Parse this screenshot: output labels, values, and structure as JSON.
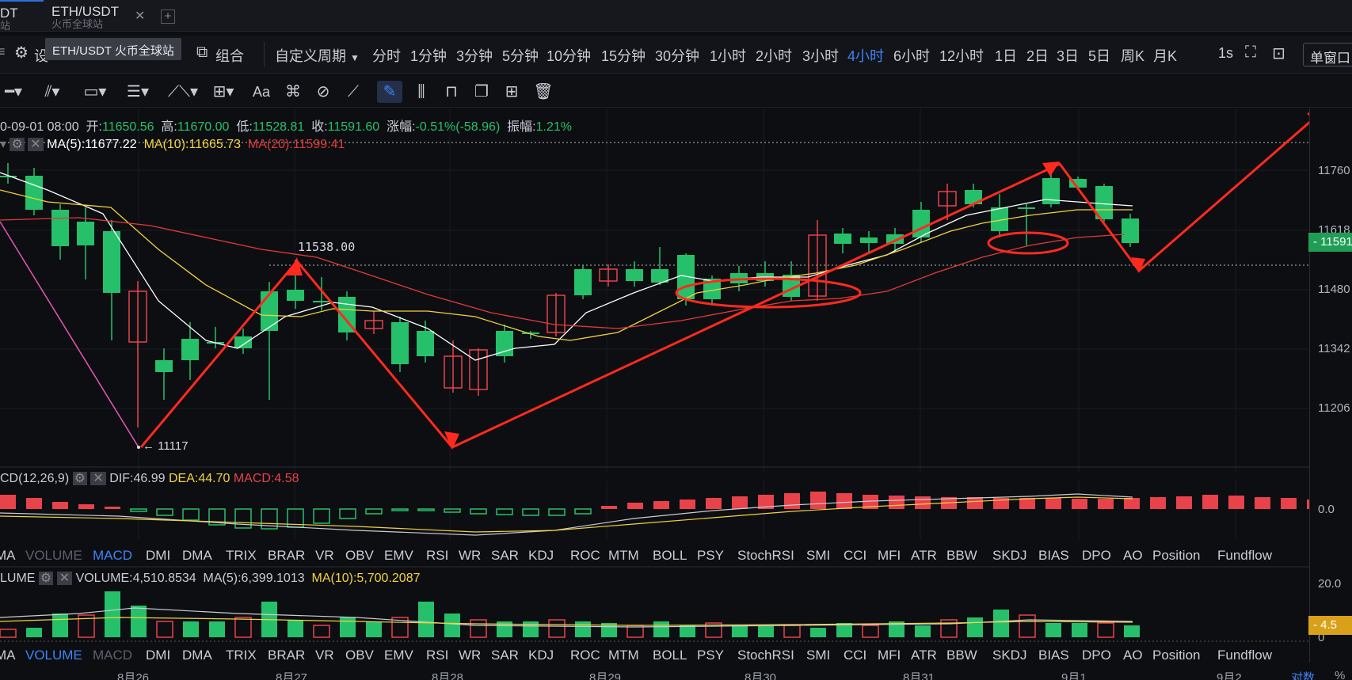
{
  "tabs": [
    {
      "title": "DT",
      "subtitle": "站"
    },
    {
      "title": "ETH/USDT",
      "subtitle": "火币全球站"
    }
  ],
  "tooltip": "ETH/USDT 火币全球站",
  "toolbar": {
    "settings_label": "设",
    "combine_label": "组合",
    "custom_period": "自定义周期",
    "periods": [
      "分时",
      "1分钟",
      "3分钟",
      "5分钟",
      "10分钟",
      "15分钟",
      "30分钟",
      "1小时",
      "2小时",
      "3小时",
      "4小时",
      "6小时",
      "12小时",
      "1日",
      "2日",
      "3日",
      "5日",
      "周K",
      "月K"
    ],
    "active_period": "4小时",
    "refresh": "1s",
    "single_window": "单窗口"
  },
  "ohlc": {
    "time": "0-09-01 08:00",
    "open_label": "开:",
    "open": "11650.56",
    "high_label": "高:",
    "high": "11670.00",
    "low_label": "低:",
    "low": "11528.81",
    "close_label": "收:",
    "close": "11591.60",
    "change_label": "涨幅:",
    "change": "-0.51%(-58.96)",
    "amp_label": "振幅:",
    "amp": "1.21%"
  },
  "ma": {
    "ma5": "MA(5):11677.22",
    "ma10": "MA(10):11665.73",
    "ma20": "MA(20):11599.41"
  },
  "annotations": {
    "peak": "11538.00",
    "low": "← 11117"
  },
  "price_axis": [
    "11760",
    "11618",
    "11480",
    "11342",
    "11206"
  ],
  "last_price": "11591",
  "macd": {
    "title": "CD(12,26,9)",
    "dif": "DIF:46.99",
    "dea": "DEA:44.70",
    "macd": "MACD:4.58",
    "zero": "0.0"
  },
  "volume": {
    "title": "LUME",
    "vol": "VOLUME:4,510.8534",
    "ma5": "MA(5):6,399.1013",
    "ma10": "MA(10):5,700.2087",
    "axis_top": "20.0",
    "axis_bottom": "0",
    "tag": "4.5"
  },
  "indicator_tabs": [
    "MA",
    "VOLUME",
    "MACD",
    "DMI",
    "DMA",
    "TRIX",
    "BRAR",
    "VR",
    "OBV",
    "EMV",
    "RSI",
    "WR",
    "SAR",
    "KDJ",
    "ROC",
    "MTM",
    "BOLL",
    "PSY",
    "StochRSI",
    "SMI",
    "CCI",
    "MFI",
    "ATR",
    "BBW",
    "SKDJ",
    "BIAS",
    "DPO",
    "AO",
    "Position",
    "Fundflow"
  ],
  "dates": [
    "8月26",
    "8月27",
    "8月28",
    "8月29",
    "8月30",
    "8月31",
    "9月1",
    "9月2"
  ],
  "corner": "对数",
  "corner2": "%",
  "colors": {
    "up": "#26c06a",
    "down": "#e8424b",
    "accent": "#3d84f7",
    "ma5": "#ffffff",
    "ma10": "#f2d33d",
    "ma20": "#e23a3a",
    "annotation": "#ff2a1f"
  }
}
